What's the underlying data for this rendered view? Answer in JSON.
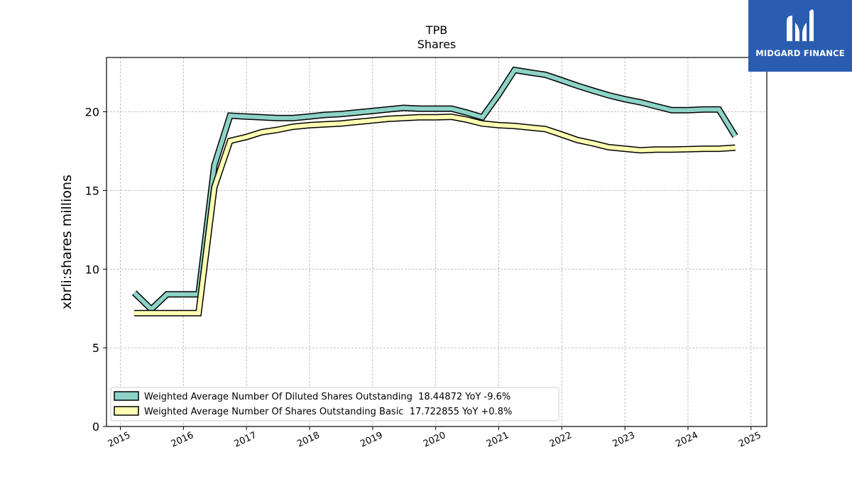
{
  "chart_data": {
    "type": "line",
    "title": "TPB",
    "subtitle": "Shares",
    "xlabel": "",
    "ylabel": "xbrli:shares millions",
    "xlim": [
      2014.78,
      2025.25
    ],
    "ylim": [
      0,
      23.45
    ],
    "yticks": [
      0,
      5,
      10,
      15,
      20
    ],
    "xticks": [
      "2015",
      "2016",
      "2017",
      "2018",
      "2019",
      "2020",
      "2021",
      "2022",
      "2023",
      "2024",
      "2025"
    ],
    "grid": true,
    "legend_position": "lower-left",
    "series": [
      {
        "name": "Weighted Average Number Of Diluted Shares Outstanding  18.44872 YoY -9.6%",
        "color": "#8dd3c7",
        "x": [
          2015.22,
          2015.49,
          2015.74,
          2016.0,
          2016.24,
          2016.49,
          2016.74,
          2017.0,
          2017.24,
          2017.49,
          2017.74,
          2018.0,
          2018.24,
          2018.49,
          2018.74,
          2019.0,
          2019.24,
          2019.49,
          2019.74,
          2020.0,
          2020.25,
          2020.49,
          2020.74,
          2021.0,
          2021.25,
          2021.49,
          2021.74,
          2022.0,
          2022.25,
          2022.49,
          2022.74,
          2023.0,
          2023.25,
          2023.49,
          2023.74,
          2024.0,
          2024.25,
          2024.49,
          2024.75
        ],
        "values": [
          8.5,
          7.45,
          8.4,
          8.4,
          8.4,
          16.6,
          19.75,
          19.7,
          19.65,
          19.6,
          19.6,
          19.7,
          19.8,
          19.85,
          19.95,
          20.05,
          20.15,
          20.25,
          20.2,
          20.2,
          20.2,
          19.95,
          19.65,
          21.1,
          22.65,
          22.5,
          22.35,
          22.0,
          21.65,
          21.35,
          21.05,
          20.8,
          20.6,
          20.35,
          20.1,
          20.1,
          20.15,
          20.15,
          18.45
        ]
      },
      {
        "name": "Weighted Average Number Of Shares Outstanding Basic  17.722855 YoY +0.8%",
        "color": "#ffffb3",
        "x": [
          2015.22,
          2015.49,
          2015.74,
          2016.0,
          2016.24,
          2016.49,
          2016.74,
          2017.0,
          2017.24,
          2017.49,
          2017.74,
          2018.0,
          2018.24,
          2018.49,
          2018.74,
          2019.0,
          2019.24,
          2019.49,
          2019.74,
          2020.0,
          2020.25,
          2020.49,
          2020.74,
          2021.0,
          2021.25,
          2021.49,
          2021.74,
          2022.0,
          2022.25,
          2022.49,
          2022.74,
          2023.0,
          2023.25,
          2023.49,
          2023.74,
          2024.0,
          2024.25,
          2024.49,
          2024.75
        ],
        "values": [
          7.2,
          7.2,
          7.2,
          7.2,
          7.2,
          15.2,
          18.15,
          18.4,
          18.7,
          18.85,
          19.05,
          19.15,
          19.2,
          19.25,
          19.35,
          19.45,
          19.55,
          19.6,
          19.65,
          19.65,
          19.68,
          19.5,
          19.25,
          19.15,
          19.1,
          19.0,
          18.9,
          18.55,
          18.2,
          18.0,
          17.75,
          17.65,
          17.55,
          17.6,
          17.6,
          17.62,
          17.65,
          17.65,
          17.72
        ]
      }
    ]
  },
  "logo": {
    "name": "MIDGARD FINANCE"
  }
}
